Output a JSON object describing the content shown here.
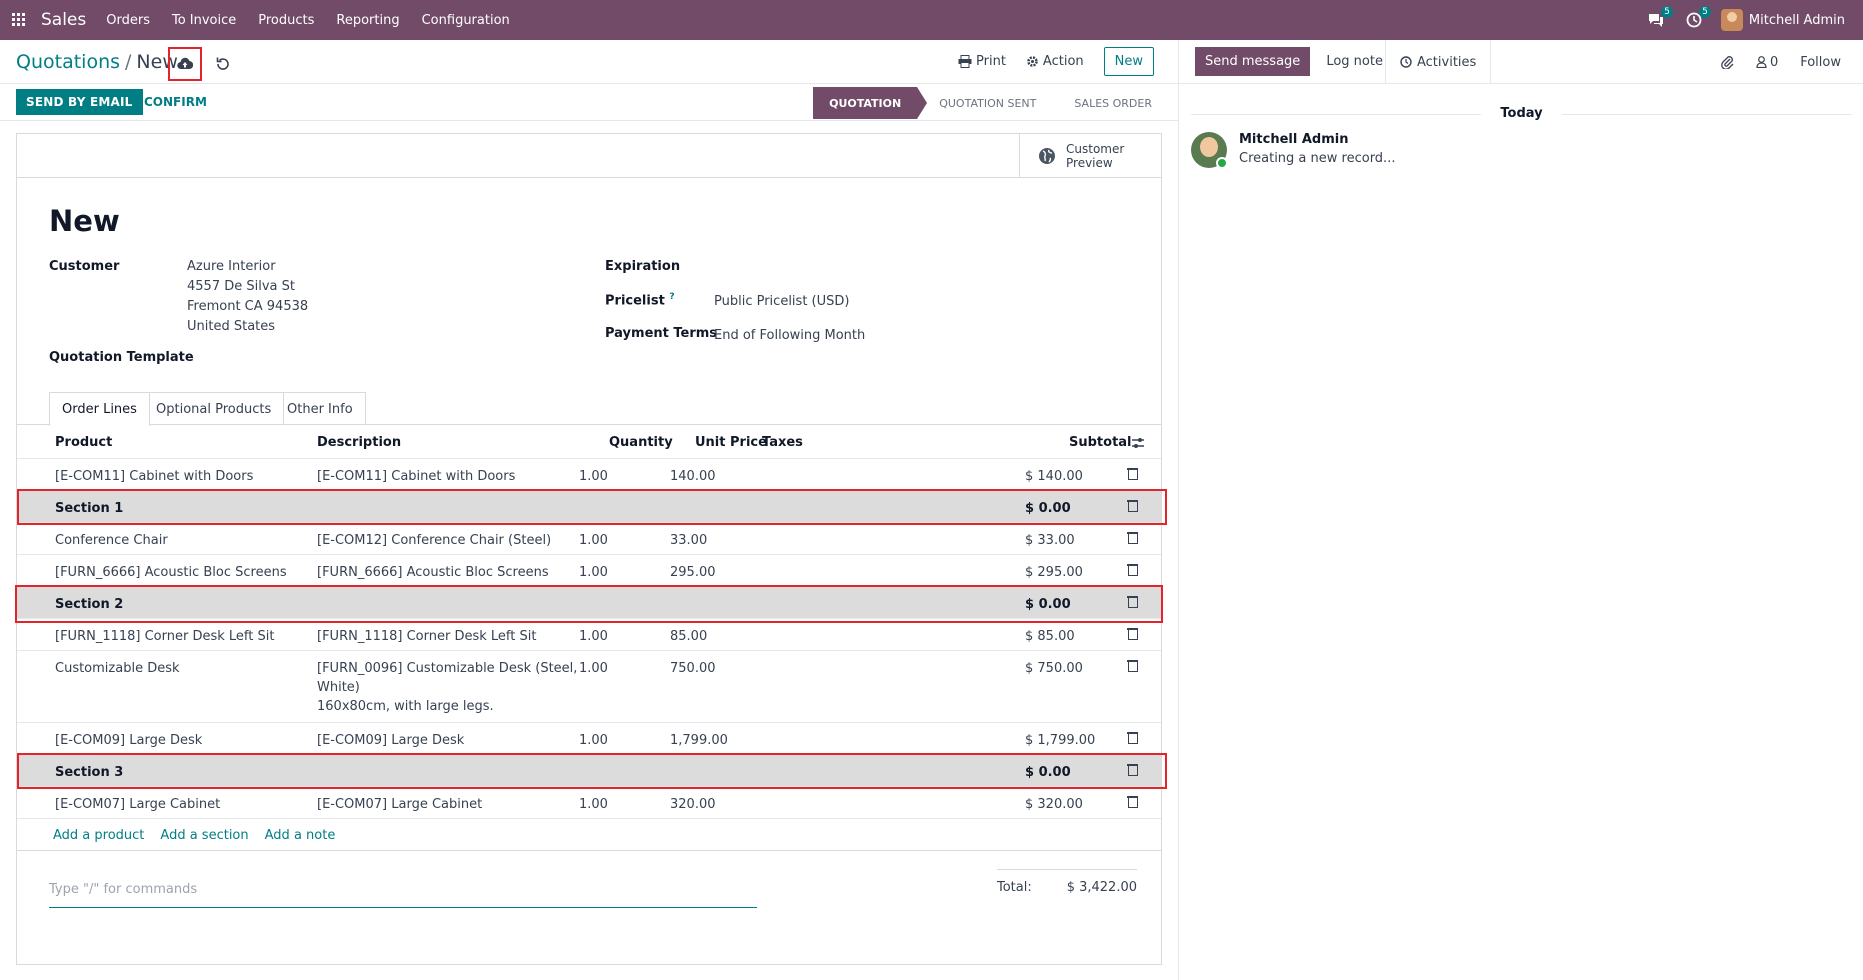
{
  "navbar": {
    "app": "Sales",
    "menu": [
      "Orders",
      "To Invoice",
      "Products",
      "Reporting",
      "Configuration"
    ],
    "messages_count": "5",
    "activities_count": "5",
    "user": "Mitchell Admin"
  },
  "control": {
    "parent": "Quotations",
    "current": "New",
    "print": "Print",
    "action": "Action",
    "new": "New"
  },
  "statusbar": {
    "send_email": "SEND BY EMAIL",
    "confirm": "CONFIRM",
    "stages": [
      "QUOTATION",
      "QUOTATION SENT",
      "SALES ORDER"
    ]
  },
  "form": {
    "customer_preview": [
      "Customer",
      "Preview"
    ],
    "title": "New",
    "customer_label": "Customer",
    "customer_address": [
      "Azure Interior",
      "4557 De Silva St",
      "Fremont CA 94538",
      "United States"
    ],
    "template_label": "Quotation Template",
    "expiration_label": "Expiration",
    "pricelist_label": "Pricelist",
    "pricelist_help": "?",
    "pricelist_value": "Public Pricelist (USD)",
    "payment_terms_label": "Payment Terms",
    "payment_terms_value": "End of Following Month",
    "tabs": [
      "Order Lines",
      "Optional Products",
      "Other Info"
    ],
    "columns": {
      "product": "Product",
      "description": "Description",
      "quantity": "Quantity",
      "unit_price": "Unit Price",
      "taxes": "Taxes",
      "subtotal": "Subtotal"
    },
    "lines": [
      {
        "type": "product",
        "product": "[E-COM11] Cabinet with Doors",
        "description": "[E-COM11] Cabinet with Doors",
        "qty": "1.00",
        "price": "140.00",
        "subtotal": "$ 140.00"
      },
      {
        "type": "section",
        "product": "Section 1",
        "subtotal": "$ 0.00"
      },
      {
        "type": "product",
        "product": "Conference Chair",
        "description": "[E-COM12] Conference Chair (Steel)",
        "qty": "1.00",
        "price": "33.00",
        "subtotal": "$ 33.00"
      },
      {
        "type": "product",
        "product": "[FURN_6666] Acoustic Bloc Screens",
        "description": "[FURN_6666] Acoustic Bloc Screens",
        "qty": "1.00",
        "price": "295.00",
        "subtotal": "$ 295.00"
      },
      {
        "type": "section",
        "product": "Section 2",
        "subtotal": "$ 0.00"
      },
      {
        "type": "product",
        "product": "[FURN_1118] Corner Desk Left Sit",
        "description": "[FURN_1118] Corner Desk Left Sit",
        "qty": "1.00",
        "price": "85.00",
        "subtotal": "$ 85.00"
      },
      {
        "type": "product",
        "product": "Customizable Desk",
        "description": "[FURN_0096] Customizable Desk (Steel,",
        "description2": "White)",
        "description3": "160x80cm, with large legs.",
        "qty": "1.00",
        "price": "750.00",
        "subtotal": "$ 750.00"
      },
      {
        "type": "product",
        "product": "[E-COM09] Large Desk",
        "description": "[E-COM09] Large Desk",
        "qty": "1.00",
        "price": "1,799.00",
        "subtotal": "$ 1,799.00"
      },
      {
        "type": "section",
        "product": "Section 3",
        "subtotal": "$ 0.00"
      },
      {
        "type": "product",
        "product": "[E-COM07] Large Cabinet",
        "description": "[E-COM07] Large Cabinet",
        "qty": "1.00",
        "price": "320.00",
        "subtotal": "$ 320.00"
      }
    ],
    "add_product": "Add a product",
    "add_section": "Add a section",
    "add_note": "Add a note",
    "note_placeholder": "Type \"/\" for commands",
    "total_label": "Total:",
    "total_value": "$ 3,422.00"
  },
  "chatter": {
    "send_message": "Send message",
    "log_note": "Log note",
    "activities": "Activities",
    "followers_count": "0",
    "follow": "Follow",
    "today": "Today",
    "author": "Mitchell Admin",
    "body": "Creating a new record..."
  },
  "colors": {
    "brand": "#714b67",
    "accent": "#017e84",
    "highlight": "#e3242b"
  }
}
